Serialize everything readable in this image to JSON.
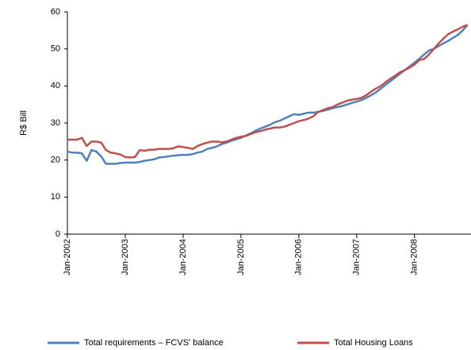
{
  "chart_data": {
    "type": "line",
    "y_label": "R$ Bill",
    "categories": [
      "Jan-2002",
      null,
      null,
      null,
      null,
      null,
      null,
      null,
      null,
      null,
      null,
      null,
      "Jan-2003",
      null,
      null,
      null,
      null,
      null,
      null,
      null,
      null,
      null,
      null,
      null,
      "Jan-2004",
      null,
      null,
      null,
      null,
      null,
      null,
      null,
      null,
      null,
      null,
      null,
      "Jan-2005",
      null,
      null,
      null,
      null,
      null,
      null,
      null,
      null,
      null,
      null,
      null,
      "Jan-2006",
      null,
      null,
      null,
      null,
      null,
      null,
      null,
      null,
      null,
      null,
      null,
      "Jan-2007",
      null,
      null,
      null,
      null,
      null,
      null,
      null,
      null,
      null,
      null,
      null,
      "Jan-2008",
      null,
      null,
      null,
      null,
      null,
      null,
      null,
      null,
      null,
      null,
      null
    ],
    "series": [
      {
        "name": "Total requirements – FCVS' balance",
        "color": "#4f81bd",
        "values": [
          22.3,
          22,
          22,
          21.8,
          19.8,
          22.7,
          22.3,
          21,
          19,
          19,
          19,
          19.2,
          19.3,
          19.3,
          19.3,
          19.5,
          19.8,
          20,
          20.2,
          20.7,
          20.8,
          21,
          21.2,
          21.3,
          21.4,
          21.4,
          21.6,
          22,
          22.3,
          23,
          23.3,
          23.7,
          24.3,
          24.7,
          25.2,
          25.6,
          26,
          26.6,
          27.2,
          27.9,
          28.5,
          29,
          29.5,
          30.2,
          30.6,
          31.2,
          31.8,
          32.4,
          32.2,
          32.5,
          32.8,
          32.8,
          33,
          33.3,
          33.6,
          34,
          34.3,
          34.6,
          35,
          35.4,
          35.8,
          36.2,
          36.8,
          37.5,
          38.3,
          39.3,
          40.3,
          41.3,
          42.3,
          43.3,
          44.3,
          45.3,
          46.3,
          47.4,
          48.5,
          49.6,
          50,
          50.8,
          51.5,
          52.2,
          53,
          53.8,
          55,
          56.5
        ]
      },
      {
        "name": "Total Housing Loans",
        "color": "#c0504d",
        "values": [
          25.5,
          25.5,
          25.5,
          26,
          23.8,
          25,
          25,
          24.7,
          22.7,
          22,
          21.8,
          21.5,
          20.8,
          20.7,
          20.8,
          22.7,
          22.5,
          22.8,
          22.8,
          23,
          23,
          23,
          23.2,
          23.7,
          23.5,
          23.3,
          23,
          23.8,
          24.3,
          24.7,
          25,
          25,
          24.8,
          25,
          25.5,
          26,
          26.3,
          26.5,
          27,
          27.5,
          27.8,
          28.2,
          28.5,
          28.8,
          28.8,
          29,
          29.5,
          30,
          30.5,
          30.8,
          31.2,
          31.8,
          33,
          33.5,
          34,
          34.3,
          35,
          35.5,
          36,
          36.3,
          36.5,
          36.8,
          37.5,
          38.5,
          39.3,
          40,
          41,
          42,
          42.8,
          43.7,
          44.3,
          45,
          45.8,
          47,
          47.3,
          48.5,
          50,
          51.5,
          52.8,
          54,
          54.7,
          55.3,
          56,
          56.5
        ]
      }
    ],
    "ylim": [
      0,
      60
    ],
    "yticks": [
      0,
      10,
      20,
      30,
      40,
      50,
      60
    ],
    "grid": false
  }
}
